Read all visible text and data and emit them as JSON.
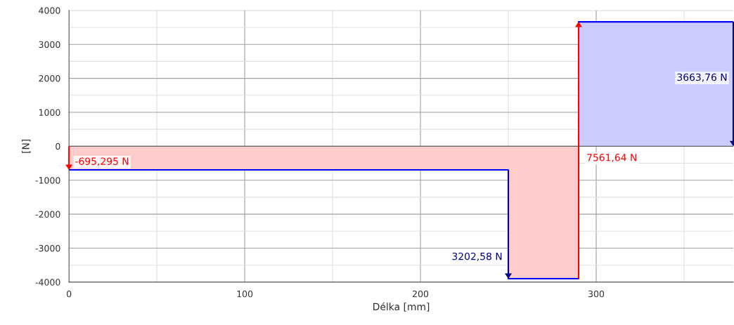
{
  "chart_data": {
    "type": "area",
    "xlabel": "Délka [mm]",
    "ylabel": "[N]",
    "xlim": [
      0,
      378
    ],
    "ylim": [
      -4000,
      4000
    ],
    "xticks": [
      0,
      {
        "value": 50,
        "label": null
      },
      100,
      {
        "value": 150,
        "label": null
      },
      200,
      {
        "value": 250,
        "label": null
      },
      300,
      {
        "value": 350,
        "label": null
      }
    ],
    "yticks": [
      -4000,
      {
        "value": -3500,
        "label": null
      },
      -3000,
      {
        "value": -2500,
        "label": null
      },
      -2000,
      {
        "value": -1500,
        "label": null
      },
      -1000,
      {
        "value": -500,
        "label": null
      },
      0,
      {
        "value": 500,
        "label": null
      },
      1000,
      {
        "value": 1500,
        "label": null
      },
      2000,
      {
        "value": 2500,
        "label": null
      },
      3000,
      {
        "value": 3500,
        "label": null
      },
      4000
    ],
    "grid": true,
    "series": [
      {
        "color": "#ffcccc",
        "x": [
          0,
          250,
          250,
          290
        ],
        "values": [
          -695.295,
          -695.295,
          -3897.875,
          -3897.875
        ]
      },
      {
        "color": "#ccccff",
        "x": [
          290,
          378
        ],
        "values": [
          3663.76,
          3663.76
        ]
      },
      {
        "type": "step",
        "color": "#0000ff",
        "x": [
          0,
          250,
          290,
          378
        ],
        "values": [
          -695.295,
          -3897.875,
          3663.76,
          3663.76
        ]
      }
    ],
    "annotations": [
      "-695,295 N",
      "3202,58 N",
      "7561,64 N",
      "3663,76 N"
    ]
  }
}
